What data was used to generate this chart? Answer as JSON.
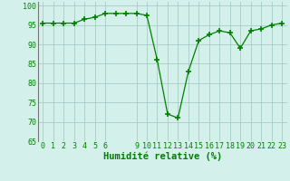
{
  "x": [
    0,
    1,
    2,
    3,
    4,
    5,
    6,
    7,
    8,
    9,
    10,
    11,
    12,
    13,
    14,
    15,
    16,
    17,
    18,
    19,
    20,
    21,
    22,
    23
  ],
  "y": [
    95.5,
    95.5,
    95.5,
    95.5,
    96.5,
    97,
    98,
    98,
    98,
    98,
    97.5,
    86,
    72,
    71,
    83,
    91,
    92.5,
    93.5,
    93,
    89,
    93.5,
    94,
    95,
    95.5
  ],
  "line_color": "#008000",
  "marker": "+",
  "marker_size": 4,
  "bg_color": "#d4f0eb",
  "grid_color": "#a8ccc6",
  "xlabel": "Humidité relative (%)",
  "xlabel_color": "#008000",
  "xlim": [
    -0.5,
    23.5
  ],
  "ylim": [
    65,
    101
  ],
  "yticks": [
    65,
    70,
    75,
    80,
    85,
    90,
    95,
    100
  ],
  "xticks": [
    0,
    1,
    2,
    3,
    4,
    5,
    6,
    9,
    10,
    11,
    12,
    13,
    14,
    15,
    16,
    17,
    18,
    19,
    20,
    21,
    22,
    23
  ],
  "tick_fontsize": 6,
  "xlabel_fontsize": 7.5,
  "left_border_color": "#777777"
}
